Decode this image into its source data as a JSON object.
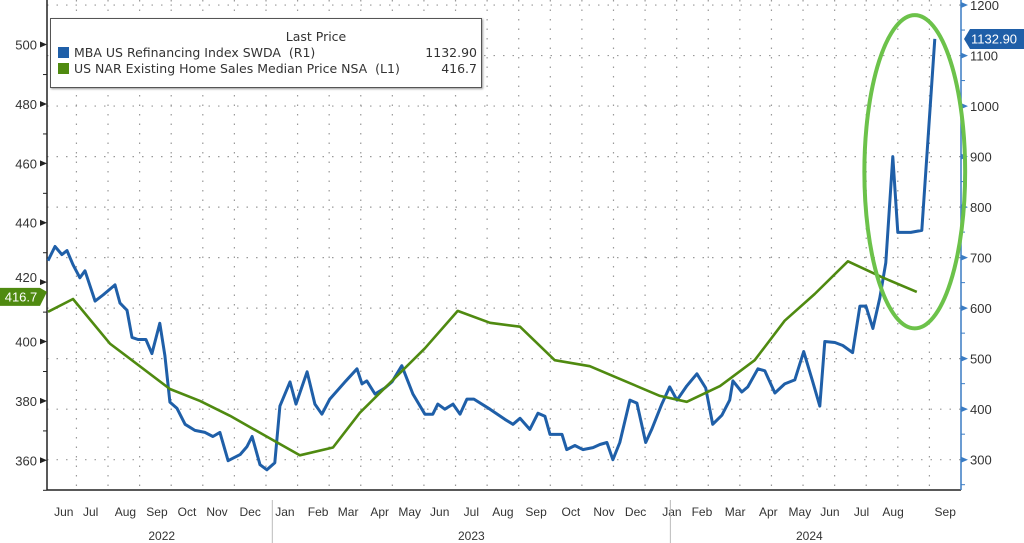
{
  "chart_data": {
    "type": "line",
    "title": "",
    "legend": {
      "header": "Last Price",
      "placement": "top-left",
      "entries": [
        {
          "name": "MBA US Refinancing Index SWDA  (R1)",
          "last": "1132.90",
          "color": "#1f5fa8"
        },
        {
          "name": "US NAR Existing Home Sales Median Price NSA  (L1)",
          "last": "416.7",
          "color": "#4f8a10"
        }
      ]
    },
    "x_units": "months since Jun 2022",
    "xlim": [
      0,
      28.9
    ],
    "left_axis": {
      "ylim": [
        350,
        515
      ],
      "ticks": [
        "500",
        "480",
        "460",
        "440",
        "420",
        "400",
        "380",
        "360"
      ]
    },
    "right_axis": {
      "ylim": [
        240,
        1210
      ],
      "ticks": [
        "1200",
        "1100",
        "1000",
        "900",
        "800",
        "700",
        "600",
        "500",
        "400",
        "300"
      ]
    },
    "month_ticks": [
      {
        "label": "Jun",
        "at": 0.5
      },
      {
        "label": "Jul",
        "at": 1.35
      },
      {
        "label": "Aug",
        "at": 2.45
      },
      {
        "label": "Sep",
        "at": 3.45
      },
      {
        "label": "Oct",
        "at": 4.4
      },
      {
        "label": "Nov",
        "at": 5.35
      },
      {
        "label": "Dec",
        "at": 6.4
      },
      {
        "label": "Jan",
        "at": 7.5
      },
      {
        "label": "Feb",
        "at": 8.55
      },
      {
        "label": "Mar",
        "at": 9.5
      },
      {
        "label": "Apr",
        "at": 10.5
      },
      {
        "label": "May",
        "at": 11.45
      },
      {
        "label": "Jun",
        "at": 12.4
      },
      {
        "label": "Jul",
        "at": 13.4
      },
      {
        "label": "Aug",
        "at": 14.4
      },
      {
        "label": "Sep",
        "at": 15.45
      },
      {
        "label": "Oct",
        "at": 16.55
      },
      {
        "label": "Nov",
        "at": 17.6
      },
      {
        "label": "Dec",
        "at": 18.6
      },
      {
        "label": "Jan",
        "at": 19.75
      },
      {
        "label": "Feb",
        "at": 20.7
      },
      {
        "label": "Mar",
        "at": 21.75
      },
      {
        "label": "Apr",
        "at": 22.8
      },
      {
        "label": "May",
        "at": 23.8
      },
      {
        "label": "Jun",
        "at": 24.75
      },
      {
        "label": "Jul",
        "at": 25.75
      },
      {
        "label": "Aug",
        "at": 26.75
      },
      {
        "label": "Sep",
        "at": 28.4
      }
    ],
    "years": [
      {
        "label": "2022",
        "at": 3.6
      },
      {
        "label": "2023",
        "at": 13.4
      },
      {
        "label": "2024",
        "at": 24.1
      }
    ],
    "year_separators": [
      7.1,
      19.7
    ],
    "series": [
      {
        "name": "MBA US Refinancing Index SWDA",
        "axis": "right",
        "color": "#1f5fa8",
        "x": [
          0,
          0.22,
          0.44,
          0.6,
          0.79,
          1.01,
          1.17,
          1.49,
          1.74,
          2.12,
          2.28,
          2.5,
          2.66,
          2.85,
          3.1,
          3.29,
          3.54,
          3.7,
          3.86,
          4.08,
          4.34,
          4.65,
          4.97,
          5.22,
          5.44,
          5.7,
          6.08,
          6.3,
          6.46,
          6.71,
          6.93,
          7.18,
          7.34,
          7.66,
          7.85,
          8.2,
          8.45,
          8.67,
          8.92,
          9.4,
          9.78,
          9.94,
          10.09,
          10.35,
          10.66,
          10.89,
          11.2,
          11.55,
          11.93,
          12.18,
          12.34,
          12.56,
          12.82,
          13.04,
          13.26,
          13.48,
          13.99,
          14.46,
          14.72,
          14.94,
          15.25,
          15.51,
          15.73,
          15.89,
          16.27,
          16.42,
          16.68,
          16.93,
          17.25,
          17.47,
          17.69,
          17.88,
          18.1,
          18.42,
          18.64,
          18.92,
          19.11,
          19.43,
          19.68,
          19.91,
          20.22,
          20.54,
          20.82,
          21.04,
          21.33,
          21.58,
          21.68,
          21.96,
          22.15,
          22.47,
          22.69,
          23.01,
          23.32,
          23.64,
          23.92,
          24.18,
          24.43,
          24.59,
          24.91,
          25.16,
          25.47,
          25.7,
          25.89,
          26.11,
          26.33,
          26.52,
          26.74,
          26.9,
          27.31,
          27.66,
          28.07
        ],
        "values": [
          694,
          722,
          706,
          714,
          686,
          660,
          674,
          614,
          626,
          646,
          610,
          596,
          542,
          538,
          538,
          510,
          570,
          506,
          414,
          402,
          370,
          358,
          354,
          346,
          354,
          298,
          310,
          326,
          346,
          290,
          280,
          294,
          406,
          454,
          410,
          474,
          410,
          390,
          420,
          454,
          480,
          450,
          456,
          430,
          442,
          454,
          486,
          430,
          390,
          390,
          410,
          400,
          410,
          390,
          420,
          420,
          400,
          380,
          370,
          382,
          360,
          392,
          386,
          350,
          350,
          320,
          328,
          320,
          324,
          330,
          334,
          300,
          334,
          418,
          412,
          334,
          360,
          410,
          444,
          418,
          446,
          470,
          442,
          370,
          388,
          418,
          456,
          434,
          444,
          480,
          476,
          432,
          450,
          458,
          514,
          460,
          406,
          534,
          532,
          526,
          512,
          604,
          604,
          560,
          620,
          690,
          900,
          750,
          750,
          754,
          1132.9
        ]
      },
      {
        "name": "US NAR Existing Home Sales Median Price NSA",
        "axis": "left",
        "color": "#4f8a10",
        "x": [
          0,
          0.79,
          1.96,
          3.86,
          4.81,
          5.76,
          7.97,
          9.02,
          9.87,
          11.93,
          12.97,
          13.99,
          14.94,
          16.04,
          17.15,
          19.37,
          20.22,
          21.27,
          22.37,
          23.32,
          24.27,
          25.32,
          26.39,
          27.5
        ],
        "values": [
          410,
          414.3,
          399.3,
          384,
          380,
          375,
          361.7,
          364.3,
          376,
          397.7,
          410.3,
          406.3,
          405,
          393.7,
          391.7,
          381.7,
          379.7,
          385,
          393.7,
          407,
          416,
          427,
          421.7,
          416.7
        ]
      }
    ],
    "last_value_labels": {
      "left": "416.7",
      "right": "1132.90"
    },
    "annotation": {
      "type": "ellipse",
      "color": "#6cc24a",
      "around_x": [
        26.0,
        29.0
      ],
      "around_right_y": [
        560,
        1180
      ]
    }
  }
}
